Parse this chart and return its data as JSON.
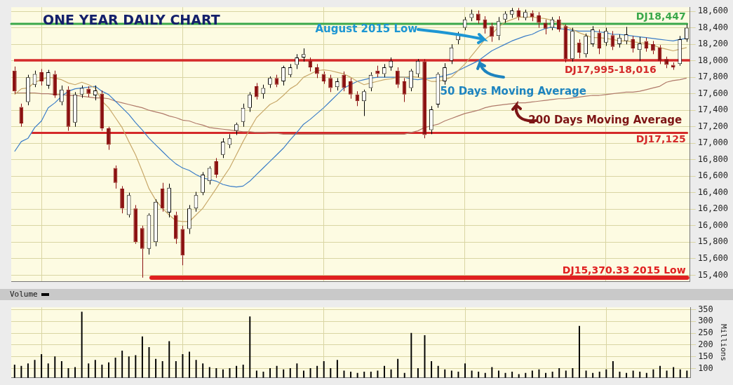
{
  "chart_data": [
    {
      "type": "candlestick",
      "title": "ONE YEAR DAILY CHART",
      "categories": [
        null,
        null,
        null,
        null,
        null,
        null,
        null,
        null,
        null,
        null,
        null,
        null,
        null,
        null,
        null,
        null,
        null,
        null,
        null,
        null,
        null,
        null,
        null,
        null,
        null,
        null,
        null,
        null,
        null,
        null,
        null,
        null,
        null,
        null,
        null,
        null,
        null,
        null,
        null,
        null,
        null,
        null,
        null,
        null,
        null,
        null,
        null,
        null,
        null,
        null,
        null,
        null,
        null,
        null,
        null,
        null,
        null,
        null,
        null,
        null,
        null,
        null,
        null,
        null,
        null,
        null,
        null,
        null,
        null,
        null,
        null,
        null,
        null,
        null,
        null,
        null,
        null,
        null,
        null,
        null,
        null,
        null,
        null,
        null,
        null,
        null,
        null,
        null,
        null,
        null,
        null,
        null,
        null,
        null,
        null,
        null,
        null,
        null,
        null,
        null,
        null
      ],
      "ohlc": [
        [
          17880,
          17930,
          17600,
          17630
        ],
        [
          17440,
          17480,
          17200,
          17240
        ],
        [
          17500,
          17830,
          17460,
          17800
        ],
        [
          17710,
          17880,
          17680,
          17840
        ],
        [
          17860,
          17900,
          17700,
          17750
        ],
        [
          17700,
          17890,
          17660,
          17860
        ],
        [
          17840,
          17880,
          17550,
          17580
        ],
        [
          17500,
          17700,
          17460,
          17650
        ],
        [
          17650,
          17690,
          17150,
          17200
        ],
        [
          17250,
          17620,
          17200,
          17590
        ],
        [
          17590,
          17700,
          17550,
          17670
        ],
        [
          17660,
          17690,
          17560,
          17600
        ],
        [
          17580,
          17700,
          17520,
          17640
        ],
        [
          17600,
          17640,
          17150,
          17180
        ],
        [
          17180,
          17200,
          16920,
          16980
        ],
        [
          16700,
          16730,
          16450,
          16520
        ],
        [
          16450,
          16480,
          16150,
          16210
        ],
        [
          16130,
          16400,
          16100,
          16370
        ],
        [
          16210,
          16250,
          15780,
          15800
        ],
        [
          15970,
          16000,
          15370,
          15720
        ],
        [
          15720,
          16150,
          15650,
          16130
        ],
        [
          15800,
          16320,
          15750,
          16290
        ],
        [
          16450,
          16520,
          16170,
          16210
        ],
        [
          16160,
          16510,
          16100,
          16460
        ],
        [
          16130,
          16170,
          15780,
          15840
        ],
        [
          15960,
          16000,
          15520,
          15640
        ],
        [
          15960,
          16250,
          15900,
          16210
        ],
        [
          16210,
          16410,
          16170,
          16370
        ],
        [
          16400,
          16650,
          16370,
          16620
        ],
        [
          16540,
          16720,
          16500,
          16700
        ],
        [
          16780,
          16820,
          16580,
          16620
        ],
        [
          16860,
          17060,
          16820,
          17020
        ],
        [
          16980,
          17110,
          16940,
          17060
        ],
        [
          17150,
          17250,
          17100,
          17230
        ],
        [
          17260,
          17480,
          17200,
          17430
        ],
        [
          17430,
          17620,
          17380,
          17590
        ],
        [
          17690,
          17730,
          17530,
          17560
        ],
        [
          17600,
          17710,
          17540,
          17670
        ],
        [
          17710,
          17810,
          17670,
          17790
        ],
        [
          17790,
          17830,
          17680,
          17710
        ],
        [
          17750,
          17940,
          17700,
          17920
        ],
        [
          17830,
          17960,
          17800,
          17920
        ],
        [
          17950,
          18080,
          17900,
          18040
        ],
        [
          18040,
          18150,
          17990,
          18080
        ],
        [
          18000,
          18040,
          17870,
          17920
        ],
        [
          17920,
          17960,
          17790,
          17840
        ],
        [
          17840,
          17870,
          17720,
          17750
        ],
        [
          17790,
          17830,
          17620,
          17670
        ],
        [
          17680,
          17790,
          17640,
          17750
        ],
        [
          17830,
          17870,
          17630,
          17670
        ],
        [
          17750,
          17790,
          17540,
          17590
        ],
        [
          17590,
          17630,
          17450,
          17510
        ],
        [
          17510,
          17650,
          17330,
          17630
        ],
        [
          17670,
          17860,
          17630,
          17830
        ],
        [
          17880,
          17940,
          17800,
          17840
        ],
        [
          17840,
          17960,
          17800,
          17920
        ],
        [
          17920,
          18040,
          17880,
          18000
        ],
        [
          17880,
          17920,
          17670,
          17710
        ],
        [
          17750,
          17790,
          17500,
          17590
        ],
        [
          17670,
          17900,
          17630,
          17880
        ],
        [
          17840,
          18020,
          17800,
          18000
        ],
        [
          17990,
          18020,
          17060,
          17100
        ],
        [
          17160,
          17450,
          17110,
          17410
        ],
        [
          17470,
          17860,
          17430,
          17840
        ],
        [
          17750,
          17970,
          17710,
          17920
        ],
        [
          18000,
          18200,
          17960,
          18160
        ],
        [
          18250,
          18350,
          18200,
          18320
        ],
        [
          18400,
          18530,
          18370,
          18500
        ],
        [
          18520,
          18620,
          18480,
          18570
        ],
        [
          18570,
          18610,
          18450,
          18490
        ],
        [
          18500,
          18540,
          18330,
          18390
        ],
        [
          18420,
          18460,
          18230,
          18290
        ],
        [
          18300,
          18530,
          18250,
          18480
        ],
        [
          18500,
          18600,
          18460,
          18570
        ],
        [
          18560,
          18640,
          18520,
          18610
        ],
        [
          18610,
          18640,
          18490,
          18530
        ],
        [
          18520,
          18620,
          18490,
          18590
        ],
        [
          18580,
          18610,
          18480,
          18530
        ],
        [
          18550,
          18590,
          18400,
          18460
        ],
        [
          18460,
          18500,
          18320,
          18390
        ],
        [
          18400,
          18530,
          18370,
          18500
        ],
        [
          18500,
          18540,
          18350,
          18380
        ],
        [
          18420,
          18440,
          17980,
          18020
        ],
        [
          18020,
          18400,
          17990,
          18360
        ],
        [
          18220,
          18260,
          18030,
          18100
        ],
        [
          18080,
          18330,
          18040,
          18300
        ],
        [
          18200,
          18420,
          18170,
          18380
        ],
        [
          18340,
          18380,
          18080,
          18150
        ],
        [
          18220,
          18400,
          18180,
          18360
        ],
        [
          18310,
          18360,
          18130,
          18170
        ],
        [
          18200,
          18320,
          18160,
          18280
        ],
        [
          18240,
          18410,
          18200,
          18320
        ],
        [
          18260,
          18300,
          18100,
          18150
        ],
        [
          18130,
          18290,
          18000,
          18210
        ],
        [
          18240,
          18280,
          18110,
          18150
        ],
        [
          18200,
          18240,
          18080,
          18120
        ],
        [
          18160,
          18190,
          17960,
          18000
        ],
        [
          18020,
          18050,
          17910,
          17950
        ],
        [
          17950,
          17980,
          17890,
          17920
        ],
        [
          17960,
          18300,
          17940,
          18260
        ],
        [
          18260,
          18440,
          18230,
          18400
        ]
      ],
      "series": [
        {
          "type": "line",
          "color": "#c8a86a",
          "values": [
            17590,
            17660,
            17670,
            17740,
            17770,
            17800,
            17790,
            17770,
            17730,
            17710,
            17740,
            17710,
            17670,
            17510,
            17430,
            17310,
            17190,
            17020,
            16860,
            16660,
            16450,
            16310,
            16210,
            16130,
            16060,
            16050,
            16050,
            16130,
            16210,
            16330,
            16450,
            16580,
            16700,
            16860,
            17020,
            17170,
            17310,
            17390,
            17470,
            17510,
            17580,
            17660,
            17710,
            17800,
            17840,
            17880,
            17890,
            17880,
            17860,
            17840,
            17800,
            17750,
            17710,
            17730,
            17750,
            17770,
            17780,
            17800,
            17800,
            17810,
            17800,
            17780,
            17750,
            17750,
            17770,
            17800,
            17880,
            17960,
            18060,
            18160,
            18260,
            18320,
            18410,
            18470,
            18500,
            18530,
            18530,
            18530,
            18520,
            18510,
            18490,
            18460,
            18420,
            18380,
            18340,
            18310,
            18280,
            18280,
            18270,
            18260,
            18240,
            18240,
            18230,
            18220,
            18210,
            18190,
            18160,
            18140,
            18120,
            18140,
            18160
          ]
        },
        {
          "type": "line",
          "color": "#3b7dc8",
          "values": [
            16900,
            17020,
            17060,
            17190,
            17270,
            17430,
            17490,
            17570,
            17630,
            17660,
            17670,
            17680,
            17690,
            17630,
            17590,
            17510,
            17430,
            17350,
            17250,
            17160,
            17060,
            16980,
            16900,
            16820,
            16750,
            16700,
            16670,
            16620,
            16580,
            16560,
            16540,
            16500,
            16480,
            16470,
            16480,
            16540,
            16620,
            16700,
            16780,
            16860,
            16940,
            17040,
            17130,
            17230,
            17290,
            17360,
            17430,
            17510,
            17590,
            17670,
            17710,
            17750,
            17770,
            17790,
            17800,
            17800,
            17800,
            17800,
            17800,
            17780,
            17770,
            17780,
            17790,
            17800,
            17820,
            17840,
            17880,
            17920,
            17960,
            18000,
            18060,
            18120,
            18160,
            18200,
            18240,
            18270,
            18300,
            18320,
            18360,
            18390,
            18410,
            18390,
            18380,
            18370,
            18360,
            18360,
            18360,
            18350,
            18340,
            18320,
            18320,
            18310,
            18300,
            18290,
            18280,
            18270,
            18260,
            18250,
            18240,
            18260,
            18270
          ]
        },
        {
          "type": "line",
          "color": "#b07a6a",
          "values": [
            17610,
            17610,
            17610,
            17610,
            17600,
            17600,
            17590,
            17590,
            17580,
            17580,
            17570,
            17560,
            17550,
            17550,
            17540,
            17510,
            17490,
            17470,
            17450,
            17430,
            17400,
            17380,
            17360,
            17330,
            17310,
            17280,
            17270,
            17240,
            17220,
            17190,
            17180,
            17170,
            17160,
            17150,
            17140,
            17140,
            17130,
            17130,
            17120,
            17120,
            17110,
            17110,
            17110,
            17110,
            17110,
            17110,
            17110,
            17110,
            17110,
            17110,
            17110,
            17110,
            17110,
            17110,
            17110,
            17110,
            17110,
            17110,
            17110,
            17130,
            17150,
            17190,
            17210,
            17230,
            17270,
            17300,
            17330,
            17360,
            17380,
            17400,
            17430,
            17450,
            17460,
            17470,
            17480,
            17490,
            17490,
            17500,
            17510,
            17520,
            17530,
            17540,
            17540,
            17550,
            17560,
            17570,
            17580,
            17580,
            17590,
            17600,
            17610,
            17620,
            17620,
            17630,
            17650,
            17670,
            17690,
            17740,
            17760,
            17770,
            17790
          ]
        }
      ],
      "ylim": [
        15320,
        18650
      ],
      "yticks": [
        {
          "value": 15400,
          "label": "15,400"
        },
        {
          "value": 15600,
          "label": "15,600"
        },
        {
          "value": 15800,
          "label": "15,800"
        },
        {
          "value": 16000,
          "label": "16,000"
        },
        {
          "value": 16200,
          "label": "16,200"
        },
        {
          "value": 16400,
          "label": "16,400"
        },
        {
          "value": 16600,
          "label": "16,600"
        },
        {
          "value": 16800,
          "label": "16,800"
        },
        {
          "value": 17000,
          "label": "17,000"
        },
        {
          "value": 17200,
          "label": "17,200"
        },
        {
          "value": 17400,
          "label": "17,400"
        },
        {
          "value": 17600,
          "label": "17,600"
        },
        {
          "value": 17800,
          "label": "17,800"
        },
        {
          "value": 18000,
          "label": "18,000"
        },
        {
          "value": 18200,
          "label": "18,200"
        },
        {
          "value": 18400,
          "label": "18,400"
        },
        {
          "value": 18600,
          "label": "18,600"
        }
      ],
      "ref_lines": [
        {
          "axis": "y",
          "value": 18447,
          "label": "DJ18,447",
          "color": "#3aa84a"
        },
        {
          "axis": "y",
          "value": 17125,
          "label": "DJ17,125",
          "color": "#d42a2a"
        },
        {
          "axis": "y",
          "value": 15370.33,
          "label": "DJ15,370.33 2015 Low",
          "color": "#e02020"
        }
      ],
      "bands": [
        {
          "axis": "y",
          "from": 17995,
          "to": 18016,
          "label": "DJ17,995-18,016",
          "color": "#d42a2a"
        }
      ],
      "annotations": [
        "August 2015 Low",
        "50 Days Moving Average",
        "200 Days Moving Average"
      ],
      "grid": true,
      "marker": "none",
      "tick_labels": "y"
    },
    {
      "type": "bar",
      "categories": [
        null,
        null,
        null,
        null,
        null,
        null,
        null,
        null,
        null,
        null,
        null,
        null,
        null,
        null,
        null,
        null,
        null,
        null,
        null,
        null,
        null,
        null,
        null,
        null,
        null,
        null,
        null,
        null,
        null,
        null,
        null,
        null,
        null,
        null,
        null,
        null,
        null,
        null,
        null,
        null,
        null,
        null,
        null,
        null,
        null,
        null,
        null,
        null,
        null,
        null,
        null,
        null,
        null,
        null,
        null,
        null,
        null,
        null,
        null,
        null,
        null,
        null,
        null,
        null,
        null,
        null,
        null,
        null,
        null,
        null,
        null,
        null,
        null,
        null,
        null,
        null,
        null,
        null,
        null,
        null,
        null,
        null,
        null,
        null,
        null,
        null,
        null,
        null,
        null,
        null,
        null,
        null,
        null,
        null,
        null,
        null,
        null,
        null,
        null,
        null,
        null
      ],
      "series": [
        {
          "name": "Volume",
          "color": "#000000",
          "values": [
            115,
            110,
            120,
            135,
            160,
            120,
            150,
            130,
            100,
            105,
            340,
            120,
            135,
            115,
            125,
            145,
            175,
            150,
            155,
            235,
            190,
            140,
            130,
            215,
            130,
            160,
            170,
            135,
            120,
            105,
            100,
            95,
            100,
            110,
            115,
            320,
            90,
            85,
            100,
            110,
            95,
            100,
            120,
            90,
            100,
            110,
            130,
            100,
            135,
            90,
            85,
            80,
            85,
            85,
            90,
            110,
            95,
            140,
            80,
            250,
            100,
            240,
            130,
            110,
            95,
            90,
            85,
            120,
            90,
            85,
            80,
            105,
            90,
            80,
            85,
            75,
            80,
            90,
            95,
            80,
            85,
            100,
            90,
            100,
            280,
            90,
            80,
            85,
            95,
            130,
            85,
            80,
            90,
            85,
            80,
            95,
            110,
            90,
            105,
            95,
            90
          ]
        }
      ],
      "ylim": [
        60,
        360
      ],
      "yticks": [
        100,
        150,
        200,
        250,
        300,
        350
      ],
      "ylabel": "Millions",
      "grid": true,
      "legend": "top left",
      "tick_labels": "y"
    }
  ]
}
